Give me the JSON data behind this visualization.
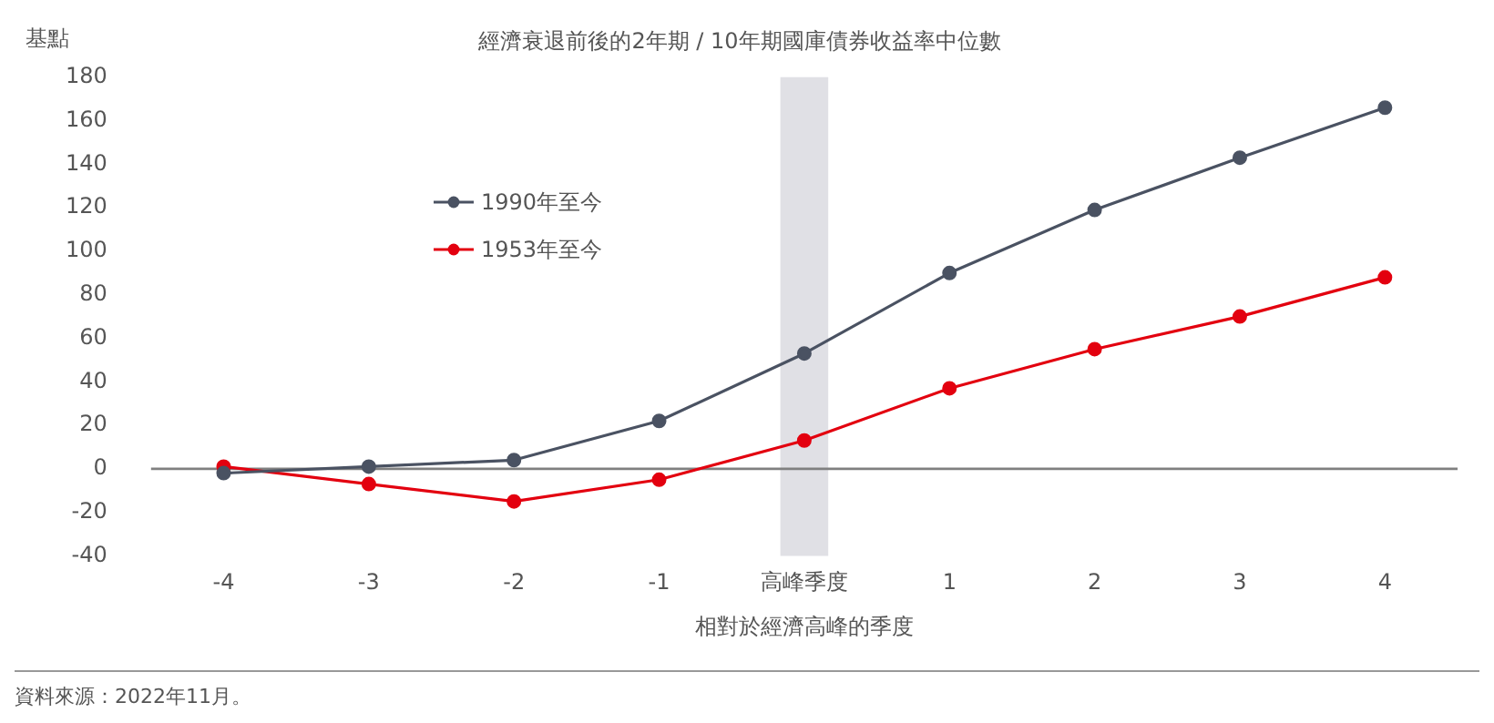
{
  "chart_data": {
    "type": "line",
    "title": "經濟衰退前後的2年期 / 10年期國庫債券收益率中位數",
    "xlabel": "相對於經濟高峰的季度",
    "ylabel": "基點",
    "categories": [
      "-4",
      "-3",
      "-2",
      "-1",
      "高峰季度",
      "1",
      "2",
      "3",
      "4"
    ],
    "series": [
      {
        "name": "1990年至今",
        "color": "#4a5262",
        "values": [
          -2,
          1,
          4,
          22,
          53,
          90,
          119,
          143,
          166
        ]
      },
      {
        "name": "1953年至今",
        "color": "#e3000f",
        "values": [
          1,
          -7,
          -15,
          -5,
          13,
          37,
          55,
          70,
          88
        ]
      }
    ],
    "ylim": [
      -40,
      180
    ],
    "yticks": [
      -40,
      -20,
      0,
      20,
      40,
      60,
      80,
      100,
      120,
      140,
      160,
      180
    ],
    "grid": false,
    "legend": "top left",
    "marker": "circle",
    "line_style": "solid",
    "bands": [
      {
        "axis": "x",
        "from": "高峰季度",
        "to": "高峰季度",
        "color": "#e0e0e5"
      }
    ],
    "ref_lines": [
      {
        "axis": "y",
        "value": 0,
        "color": "#808080"
      }
    ],
    "annotations": [
      "資料來源：2022年11月。"
    ]
  }
}
